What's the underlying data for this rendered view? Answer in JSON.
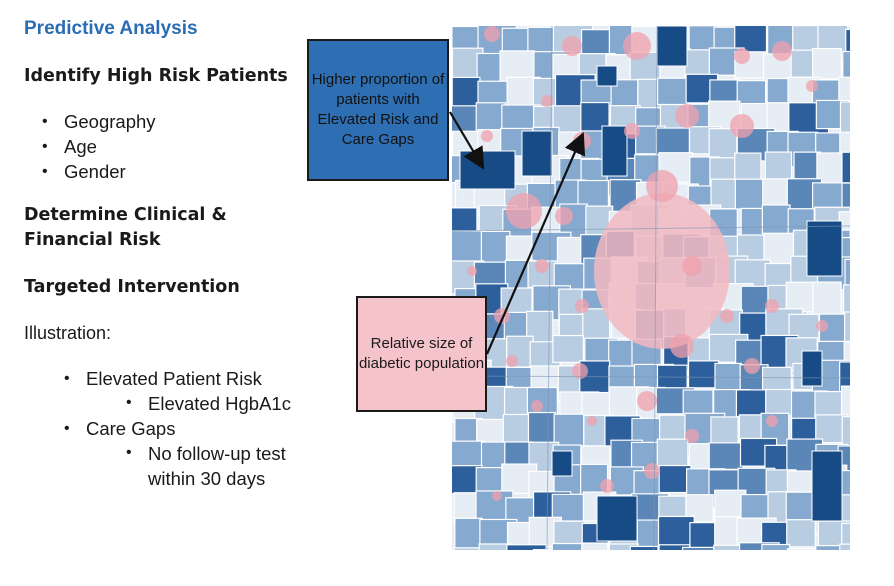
{
  "title": "Predictive Analysis",
  "section1": {
    "heading": "Identify High Risk Patients",
    "bullets": [
      "Geography",
      "Age",
      "Gender"
    ]
  },
  "section2": {
    "heading_line1": "Determine Clinical &",
    "heading_line2": "Financial Risk"
  },
  "section3": {
    "heading": "Targeted Intervention"
  },
  "illustration": {
    "label": "Illustration:",
    "item1": "Elevated Patient Risk",
    "item1_sub": "Elevated HgbA1c",
    "item2": "Care Gaps",
    "item2_sub": "No follow-up test within 30 days"
  },
  "callout_blue": {
    "text": "Higher proportion of patients with Elevated Risk and Care Gaps",
    "color": "#2e6fb3"
  },
  "callout_pink": {
    "text": "Relative size of diabetic population",
    "color": "#f5c4cb"
  },
  "map_colors": {
    "lightest": "#e6edf4",
    "light": "#b9cde2",
    "medium": "#86a9cf",
    "medium_dark": "#5b86b8",
    "dark": "#2d5f9c",
    "darkest": "#174b86",
    "bubble": "#f0a0ac",
    "center_blob": "#f2b8c1"
  }
}
